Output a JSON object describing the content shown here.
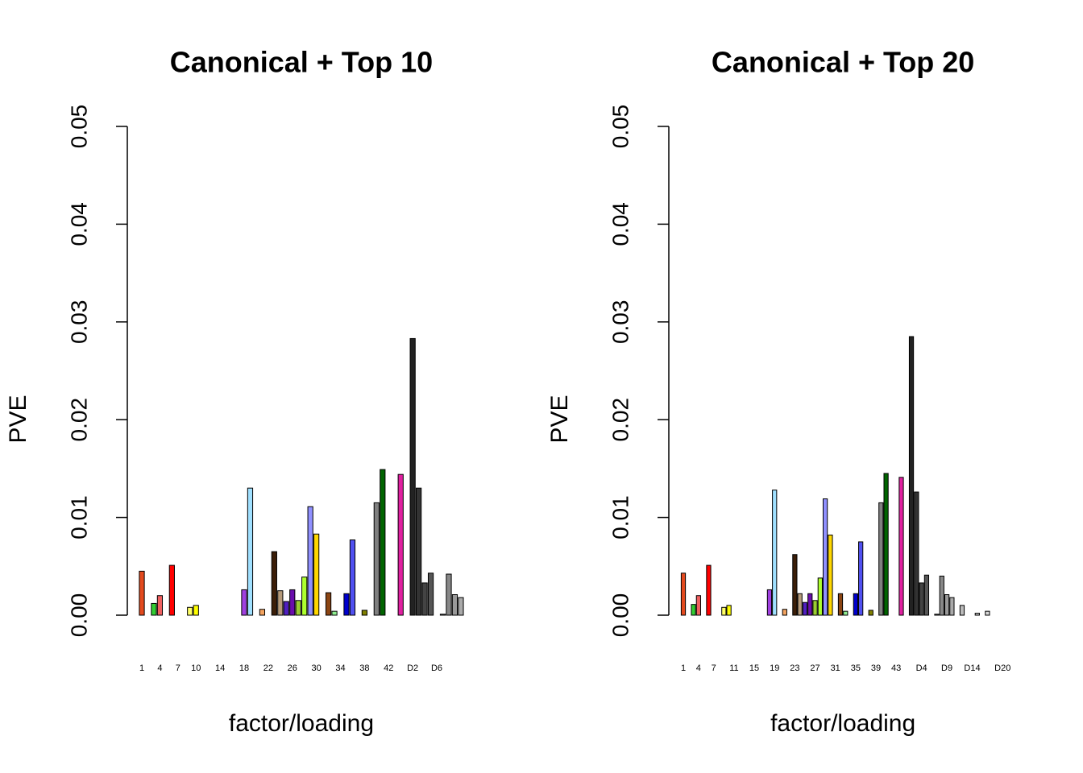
{
  "chart_data": [
    {
      "type": "bar",
      "title": "Canonical + Top 10",
      "xlabel": "factor/loading",
      "ylabel": "PVE",
      "categories": [
        "1",
        null,
        null,
        "4",
        null,
        null,
        "7",
        null,
        null,
        "10",
        null,
        null,
        null,
        "14",
        null,
        null,
        null,
        "18",
        null,
        null,
        null,
        "22",
        null,
        null,
        null,
        "26",
        null,
        null,
        null,
        "30",
        null,
        null,
        null,
        "34",
        null,
        null,
        null,
        "38",
        null,
        null,
        null,
        "42",
        null,
        null,
        null,
        "D2",
        null,
        null,
        null,
        "D6",
        null,
        null,
        null,
        null
      ],
      "values": [
        0.0045,
        0,
        0.0012,
        0.002,
        0,
        0.0051,
        0,
        0,
        0.0008,
        0.001,
        0,
        0,
        0,
        0,
        0,
        0,
        0,
        0.0026,
        0.013,
        0,
        0.0006,
        0,
        0.0065,
        0.0025,
        0.0014,
        0.0026,
        0.0015,
        0.0039,
        0.0111,
        0.0083,
        0,
        0.0023,
        0.0004,
        0,
        0.0022,
        0.0077,
        0,
        0.0005,
        0,
        0.0115,
        0.0149,
        0,
        0,
        0.0144,
        0,
        0.0283,
        0.013,
        0.0033,
        0.0043,
        0,
        0.0001,
        0.0042,
        0.0021,
        0.0018
      ],
      "colors": [
        "#e34a1e",
        "#cccccc",
        "#32cd32",
        "#f06060",
        "#cccccc",
        "#ff0000",
        "#cccccc",
        "#cccccc",
        "#ffff66",
        "#ffff00",
        "#cccccc",
        "#cccccc",
        "#cccccc",
        "#cccccc",
        "#cccccc",
        "#cccccc",
        "#cccccc",
        "#a040e0",
        "#a0e0ff",
        "#cccccc",
        "#f4a460",
        "#cccccc",
        "#3b1e08",
        "#b59a7a",
        "#5020c0",
        "#6a0dad",
        "#9acd32",
        "#adff2f",
        "#9090ff",
        "#ffd700",
        "#cccccc",
        "#8b4513",
        "#90ee90",
        "#cccccc",
        "#0000cd",
        "#5050f0",
        "#cccccc",
        "#808000",
        "#cccccc",
        "#808080",
        "#006400",
        "#cccccc",
        "#cccccc",
        "#e020a0",
        "#111111",
        "#222222",
        "#333333",
        "#444444",
        "#555555",
        "#666666",
        "#777777",
        "#888888",
        "#999999",
        "#aaaaaa"
      ],
      "ylim": [
        0,
        0.05
      ],
      "yticks": [
        {
          "value": 0,
          "label": "0.00"
        },
        {
          "value": 0.01,
          "label": "0.01"
        },
        {
          "value": 0.02,
          "label": "0.02"
        },
        {
          "value": 0.03,
          "label": "0.03"
        },
        {
          "value": 0.04,
          "label": "0.04"
        },
        {
          "value": 0.05,
          "label": "0.05"
        }
      ]
    },
    {
      "type": "bar",
      "title": "Canonical + Top 20",
      "xlabel": "factor/loading",
      "ylabel": "PVE",
      "categories": [
        "1",
        null,
        null,
        "4",
        null,
        null,
        "7",
        null,
        null,
        null,
        "11",
        null,
        null,
        null,
        "15",
        null,
        null,
        null,
        "19",
        null,
        null,
        null,
        "23",
        null,
        null,
        null,
        "27",
        null,
        null,
        null,
        "31",
        null,
        null,
        null,
        "35",
        null,
        null,
        null,
        "39",
        null,
        null,
        null,
        "43",
        null,
        null,
        null,
        null,
        "D4",
        null,
        null,
        null,
        null,
        "D9",
        null,
        null,
        null,
        null,
        "D14",
        null,
        null,
        null,
        null,
        null,
        "D20"
      ],
      "values": [
        0.0043,
        0,
        0.0011,
        0.002,
        0,
        0.0051,
        0,
        0,
        0.0008,
        0.001,
        0,
        0,
        0,
        0,
        0,
        0,
        0,
        0.0026,
        0.0128,
        0,
        0.0006,
        0,
        0.0062,
        0.0022,
        0.0013,
        0.0022,
        0.0015,
        0.0038,
        0.0119,
        0.0082,
        0,
        0.0022,
        0.0004,
        0,
        0.0022,
        0.0075,
        0,
        0.0005,
        0,
        0.0115,
        0.0145,
        0,
        0,
        0.0141,
        0,
        0.0285,
        0.0126,
        0.0033,
        0.0041,
        0,
        0.0001,
        0.004,
        0.0021,
        0.0018,
        0,
        0.001,
        0,
        0,
        0.0002,
        0,
        0.0004,
        0,
        0,
        0
      ],
      "colors": [
        "#e34a1e",
        "#cccccc",
        "#32cd32",
        "#f06060",
        "#cccccc",
        "#ff0000",
        "#cccccc",
        "#cccccc",
        "#ffff66",
        "#ffff00",
        "#cccccc",
        "#cccccc",
        "#cccccc",
        "#cccccc",
        "#cccccc",
        "#cccccc",
        "#cccccc",
        "#a040e0",
        "#a0e0ff",
        "#cccccc",
        "#f4a460",
        "#cccccc",
        "#3b1e08",
        "#b59a7a",
        "#5020c0",
        "#6a0dad",
        "#9acd32",
        "#adff2f",
        "#9090ff",
        "#ffd700",
        "#cccccc",
        "#8b4513",
        "#90ee90",
        "#cccccc",
        "#0000cd",
        "#5050f0",
        "#cccccc",
        "#808000",
        "#cccccc",
        "#808080",
        "#006400",
        "#cccccc",
        "#cccccc",
        "#e020a0",
        "#111111",
        "#222222",
        "#333333",
        "#444444",
        "#555555",
        "#666666",
        "#777777",
        "#888888",
        "#999999",
        "#aaaaaa",
        "#b0b0b0",
        "#bbbbbb",
        "#c0c0c0",
        "#c8c8c8",
        "#cccccc",
        "#d0d0d0",
        "#d8d8d8",
        "#e0e0e0",
        "#e8e8e8",
        "#eeeeee"
      ],
      "ylim": [
        0,
        0.05
      ],
      "yticks": [
        {
          "value": 0,
          "label": "0.00"
        },
        {
          "value": 0.01,
          "label": "0.01"
        },
        {
          "value": 0.02,
          "label": "0.02"
        },
        {
          "value": 0.03,
          "label": "0.03"
        },
        {
          "value": 0.04,
          "label": "0.04"
        },
        {
          "value": 0.05,
          "label": "0.05"
        }
      ]
    }
  ]
}
